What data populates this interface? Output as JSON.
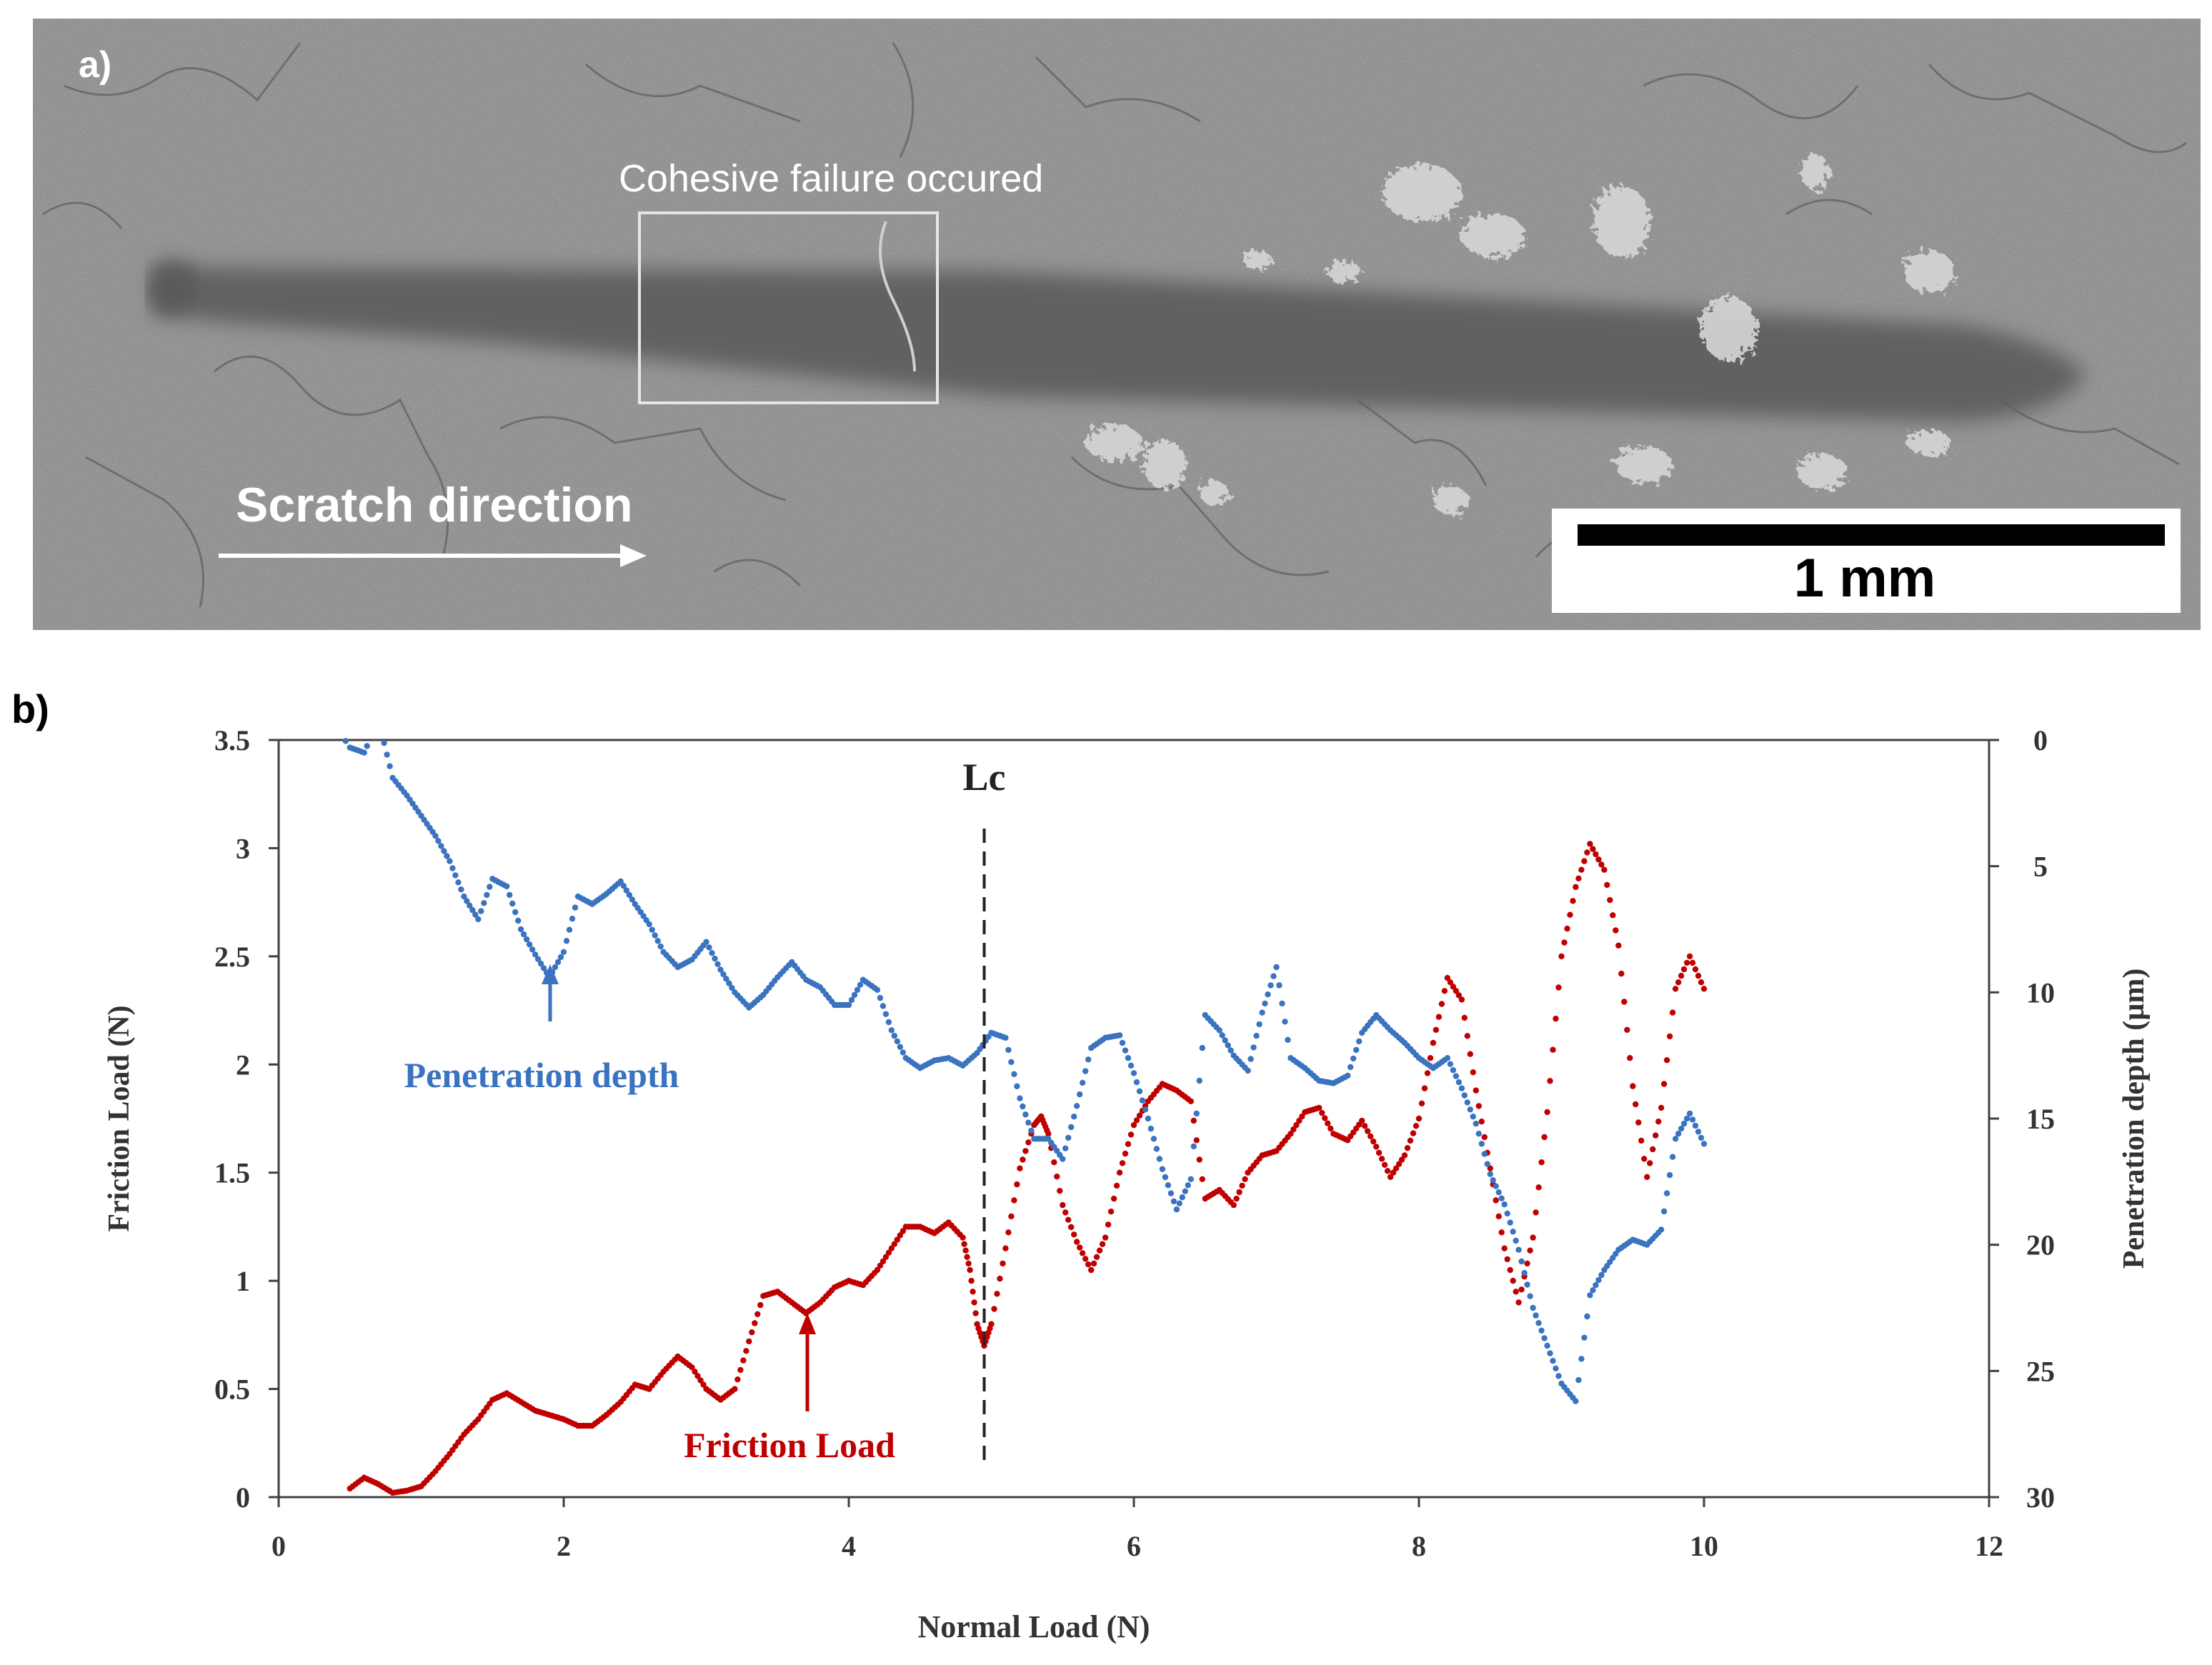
{
  "panel_a": {
    "label": "a)",
    "annotation": "Cohesive failure occured",
    "direction_label": "Scratch direction",
    "scale_bar_label": "1 mm",
    "colors": {
      "background": "#8c8c8c",
      "track": "#5c5c5c",
      "debris": "#dcdcdc",
      "text": "#ffffff"
    }
  },
  "panel_b": {
    "label": "b)",
    "lc_label": "Lc",
    "penetration_annotation": "Penetration depth",
    "friction_annotation": "Friction Load"
  },
  "chart_data": {
    "type": "scatter",
    "title": "",
    "xlabel": "Normal Load (N)",
    "ylabel": "Friction Load (N)",
    "y2label": "Penetration depth (µm)",
    "xlim": [
      0,
      12
    ],
    "ylim": [
      0,
      3.5
    ],
    "y2lim": [
      0,
      30
    ],
    "y2_inverted": true,
    "xticks": [
      "0",
      "2",
      "4",
      "6",
      "8",
      "10",
      "12"
    ],
    "yticks": [
      "0",
      "0.5",
      "1",
      "1.5",
      "2",
      "2.5",
      "3",
      "3.5"
    ],
    "y2ticks": [
      "0",
      "5",
      "10",
      "15",
      "20",
      "25",
      "30"
    ],
    "lc_x": 4.95,
    "colors": {
      "friction": "#c00000",
      "depth": "#3a73c0",
      "axis": "#404040"
    },
    "series": [
      {
        "name": "Friction Load",
        "axis": "left",
        "x": [
          0.5,
          0.6,
          0.7,
          0.8,
          0.9,
          1.0,
          1.1,
          1.2,
          1.3,
          1.4,
          1.5,
          1.6,
          1.7,
          1.8,
          1.9,
          2.0,
          2.1,
          2.2,
          2.3,
          2.4,
          2.5,
          2.6,
          2.7,
          2.8,
          2.9,
          3.0,
          3.1,
          3.2,
          3.3,
          3.4,
          3.5,
          3.6,
          3.7,
          3.8,
          3.9,
          4.0,
          4.1,
          4.2,
          4.3,
          4.4,
          4.5,
          4.6,
          4.7,
          4.8,
          4.85,
          4.9,
          4.95,
          5.0,
          5.1,
          5.2,
          5.3,
          5.35,
          5.4,
          5.5,
          5.6,
          5.7,
          5.8,
          5.9,
          6.0,
          6.1,
          6.2,
          6.3,
          6.4,
          6.5,
          6.6,
          6.7,
          6.8,
          6.9,
          7.0,
          7.1,
          7.2,
          7.3,
          7.4,
          7.5,
          7.6,
          7.7,
          7.8,
          7.9,
          8.0,
          8.1,
          8.2,
          8.3,
          8.4,
          8.5,
          8.6,
          8.7,
          8.8,
          8.9,
          9.0,
          9.1,
          9.2,
          9.3,
          9.4,
          9.5,
          9.6,
          9.7,
          9.8,
          9.9,
          10.0
        ],
        "y": [
          0.04,
          0.09,
          0.06,
          0.02,
          0.03,
          0.05,
          0.12,
          0.2,
          0.29,
          0.36,
          0.45,
          0.48,
          0.44,
          0.4,
          0.38,
          0.36,
          0.33,
          0.33,
          0.38,
          0.44,
          0.52,
          0.5,
          0.58,
          0.65,
          0.6,
          0.5,
          0.45,
          0.5,
          0.72,
          0.93,
          0.95,
          0.9,
          0.85,
          0.9,
          0.97,
          1.0,
          0.98,
          1.05,
          1.15,
          1.25,
          1.25,
          1.22,
          1.27,
          1.2,
          1.05,
          0.8,
          0.7,
          0.8,
          1.15,
          1.52,
          1.72,
          1.76,
          1.68,
          1.35,
          1.18,
          1.05,
          1.2,
          1.5,
          1.72,
          1.83,
          1.91,
          1.88,
          1.83,
          1.38,
          1.42,
          1.35,
          1.5,
          1.58,
          1.6,
          1.68,
          1.78,
          1.8,
          1.68,
          1.65,
          1.74,
          1.62,
          1.48,
          1.58,
          1.75,
          2.1,
          2.4,
          2.3,
          1.88,
          1.52,
          1.15,
          0.9,
          1.2,
          1.78,
          2.5,
          2.82,
          3.02,
          2.9,
          2.55,
          1.9,
          1.48,
          1.8,
          2.35,
          2.5,
          2.35
        ]
      },
      {
        "name": "Penetration depth",
        "axis": "right",
        "x": [
          0.35,
          0.5,
          0.6,
          0.7,
          0.8,
          0.9,
          1.0,
          1.1,
          1.2,
          1.3,
          1.4,
          1.5,
          1.6,
          1.7,
          1.8,
          1.9,
          2.0,
          2.1,
          2.2,
          2.3,
          2.4,
          2.5,
          2.6,
          2.7,
          2.8,
          2.9,
          3.0,
          3.1,
          3.2,
          3.3,
          3.4,
          3.5,
          3.6,
          3.7,
          3.8,
          3.9,
          4.0,
          4.1,
          4.2,
          4.3,
          4.4,
          4.5,
          4.6,
          4.7,
          4.8,
          4.9,
          5.0,
          5.1,
          5.2,
          5.3,
          5.4,
          5.5,
          5.6,
          5.7,
          5.8,
          5.9,
          6.0,
          6.1,
          6.2,
          6.3,
          6.4,
          6.5,
          6.6,
          6.7,
          6.8,
          6.9,
          7.0,
          7.1,
          7.2,
          7.3,
          7.4,
          7.5,
          7.6,
          7.7,
          7.8,
          7.9,
          8.0,
          8.1,
          8.2,
          8.3,
          8.4,
          8.5,
          8.6,
          8.7,
          8.8,
          8.9,
          9.0,
          9.1,
          9.2,
          9.3,
          9.4,
          9.5,
          9.6,
          9.7,
          9.8,
          9.9,
          10.0
        ],
        "y": [
          -1.0,
          0.3,
          0.5,
          -0.8,
          1.5,
          2.2,
          3.0,
          3.8,
          4.8,
          6.2,
          7.1,
          5.5,
          5.8,
          7.5,
          8.5,
          9.4,
          8.4,
          6.2,
          6.5,
          6.1,
          5.6,
          6.5,
          7.3,
          8.4,
          9.0,
          8.7,
          8.0,
          9.1,
          10.0,
          10.6,
          10.1,
          9.4,
          8.8,
          9.5,
          9.8,
          10.5,
          10.5,
          9.5,
          9.9,
          11.5,
          12.6,
          13.0,
          12.7,
          12.6,
          12.9,
          12.4,
          11.6,
          11.8,
          14.2,
          15.8,
          15.8,
          16.6,
          14.5,
          12.2,
          11.8,
          11.7,
          13.2,
          15.0,
          17.0,
          18.6,
          17.4,
          10.9,
          11.5,
          12.5,
          13.1,
          10.8,
          9.0,
          12.6,
          13.0,
          13.5,
          13.6,
          13.3,
          11.6,
          10.9,
          11.5,
          12.0,
          12.6,
          13.0,
          12.6,
          13.8,
          15.2,
          17.2,
          18.4,
          20.2,
          22.5,
          24.0,
          25.5,
          26.2,
          22.0,
          21.0,
          20.2,
          19.8,
          20.0,
          19.4,
          15.8,
          14.8,
          16.0
        ]
      }
    ]
  }
}
